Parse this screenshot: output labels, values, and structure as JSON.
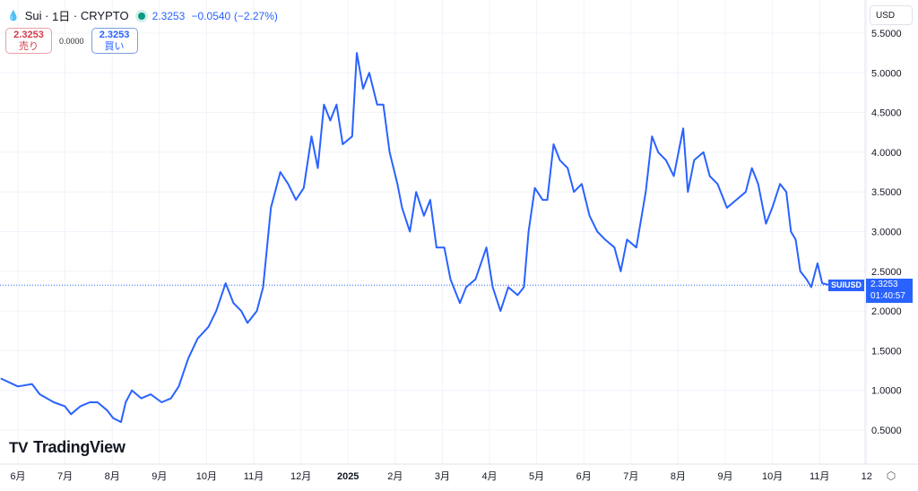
{
  "header": {
    "symbol": "Sui",
    "interval": "1日",
    "exchange": "CRYPTO",
    "last": "2.3253",
    "change": "−0.0540",
    "change_pct": "(−2.27%)",
    "sell_price": "2.3253",
    "sell_label": "売り",
    "spread": "0.0000",
    "buy_price": "2.3253",
    "buy_label": "買い",
    "currency": "USD"
  },
  "logo": "TradingView",
  "price_tag": {
    "symbol": "SUIUSD",
    "price": "2.3253",
    "countdown": "01:40:57"
  },
  "colors": {
    "line": "#2962ff",
    "up": "#089981",
    "down": "#d23b48"
  },
  "chart_data": {
    "type": "line",
    "y_ticks": [
      "5.5000",
      "5.0000",
      "4.5000",
      "4.0000",
      "3.5000",
      "3.0000",
      "2.5000",
      "2.0000",
      "1.5000",
      "1.0000",
      "0.5000"
    ],
    "ylim": [
      0.5,
      5.5
    ],
    "x_ticks": [
      "6月",
      "7月",
      "8月",
      "9月",
      "10月",
      "11月",
      "12月",
      "2025",
      "2月",
      "3月",
      "4月",
      "5月",
      "6月",
      "7月",
      "8月",
      "9月",
      "10月",
      "11月",
      "12"
    ],
    "grid": true,
    "series": [
      {
        "points": [
          [
            "2024-05-21",
            1.15
          ],
          [
            "2024-06-01",
            1.05
          ],
          [
            "2024-06-10",
            1.08
          ],
          [
            "2024-06-15",
            0.95
          ],
          [
            "2024-06-24",
            0.85
          ],
          [
            "2024-07-01",
            0.8
          ],
          [
            "2024-07-05",
            0.7
          ],
          [
            "2024-07-11",
            0.8
          ],
          [
            "2024-07-17",
            0.85
          ],
          [
            "2024-07-22",
            0.85
          ],
          [
            "2024-07-28",
            0.75
          ],
          [
            "2024-08-01",
            0.65
          ],
          [
            "2024-08-06",
            0.6
          ],
          [
            "2024-08-09",
            0.85
          ],
          [
            "2024-08-13",
            1.0
          ],
          [
            "2024-08-19",
            0.9
          ],
          [
            "2024-08-25",
            0.95
          ],
          [
            "2024-09-01",
            0.85
          ],
          [
            "2024-09-07",
            0.9
          ],
          [
            "2024-09-12",
            1.05
          ],
          [
            "2024-09-18",
            1.4
          ],
          [
            "2024-09-24",
            1.65
          ],
          [
            "2024-10-01",
            1.8
          ],
          [
            "2024-10-06",
            2.0
          ],
          [
            "2024-10-12",
            2.35
          ],
          [
            "2024-10-17",
            2.1
          ],
          [
            "2024-10-22",
            2.0
          ],
          [
            "2024-10-26",
            1.85
          ],
          [
            "2024-11-01",
            2.0
          ],
          [
            "2024-11-05",
            2.3
          ],
          [
            "2024-11-10",
            3.3
          ],
          [
            "2024-11-16",
            3.75
          ],
          [
            "2024-11-21",
            3.6
          ],
          [
            "2024-11-26",
            3.4
          ],
          [
            "2024-12-01",
            3.55
          ],
          [
            "2024-12-06",
            4.2
          ],
          [
            "2024-12-10",
            3.8
          ],
          [
            "2024-12-14",
            4.6
          ],
          [
            "2024-12-18",
            4.4
          ],
          [
            "2024-12-22",
            4.6
          ],
          [
            "2024-12-26",
            4.1
          ],
          [
            "2025-01-01",
            4.2
          ],
          [
            "2025-01-04",
            5.25
          ],
          [
            "2025-01-08",
            4.8
          ],
          [
            "2025-01-12",
            5.0
          ],
          [
            "2025-01-17",
            4.6
          ],
          [
            "2025-01-21",
            4.6
          ],
          [
            "2025-01-25",
            4.0
          ],
          [
            "2025-01-30",
            3.6
          ],
          [
            "2025-02-02",
            3.3
          ],
          [
            "2025-02-07",
            3.0
          ],
          [
            "2025-02-11",
            3.5
          ],
          [
            "2025-02-16",
            3.2
          ],
          [
            "2025-02-20",
            3.4
          ],
          [
            "2025-02-24",
            2.8
          ],
          [
            "2025-03-01",
            2.8
          ],
          [
            "2025-03-05",
            2.4
          ],
          [
            "2025-03-11",
            2.1
          ],
          [
            "2025-03-15",
            2.3
          ],
          [
            "2025-03-21",
            2.4
          ],
          [
            "2025-03-28",
            2.8
          ],
          [
            "2025-04-01",
            2.3
          ],
          [
            "2025-04-06",
            2.0
          ],
          [
            "2025-04-11",
            2.3
          ],
          [
            "2025-04-17",
            2.2
          ],
          [
            "2025-04-21",
            2.3
          ],
          [
            "2025-04-24",
            3.0
          ],
          [
            "2025-04-28",
            3.55
          ],
          [
            "2025-05-03",
            3.4
          ],
          [
            "2025-05-06",
            3.4
          ],
          [
            "2025-05-10",
            4.1
          ],
          [
            "2025-05-14",
            3.9
          ],
          [
            "2025-05-19",
            3.8
          ],
          [
            "2025-05-23",
            3.5
          ],
          [
            "2025-05-28",
            3.6
          ],
          [
            "2025-06-02",
            3.2
          ],
          [
            "2025-06-07",
            3.0
          ],
          [
            "2025-06-12",
            2.9
          ],
          [
            "2025-06-18",
            2.8
          ],
          [
            "2025-06-22",
            2.5
          ],
          [
            "2025-06-26",
            2.9
          ],
          [
            "2025-07-02",
            2.8
          ],
          [
            "2025-07-08",
            3.5
          ],
          [
            "2025-07-12",
            4.2
          ],
          [
            "2025-07-16",
            4.0
          ],
          [
            "2025-07-21",
            3.9
          ],
          [
            "2025-07-26",
            3.7
          ],
          [
            "2025-08-01",
            4.3
          ],
          [
            "2025-08-04",
            3.5
          ],
          [
            "2025-08-08",
            3.9
          ],
          [
            "2025-08-14",
            4.0
          ],
          [
            "2025-08-18",
            3.7
          ],
          [
            "2025-08-23",
            3.6
          ],
          [
            "2025-08-29",
            3.3
          ],
          [
            "2025-09-04",
            3.4
          ],
          [
            "2025-09-10",
            3.5
          ],
          [
            "2025-09-14",
            3.8
          ],
          [
            "2025-09-18",
            3.6
          ],
          [
            "2025-09-23",
            3.1
          ],
          [
            "2025-09-27",
            3.3
          ],
          [
            "2025-10-02",
            3.6
          ],
          [
            "2025-10-06",
            3.5
          ],
          [
            "2025-10-09",
            3.0
          ],
          [
            "2025-10-12",
            2.9
          ],
          [
            "2025-10-15",
            2.5
          ],
          [
            "2025-10-19",
            2.4
          ],
          [
            "2025-10-22",
            2.3
          ],
          [
            "2025-10-26",
            2.6
          ],
          [
            "2025-10-29",
            2.35
          ],
          [
            "2025-11-03",
            2.3253
          ]
        ]
      }
    ]
  }
}
